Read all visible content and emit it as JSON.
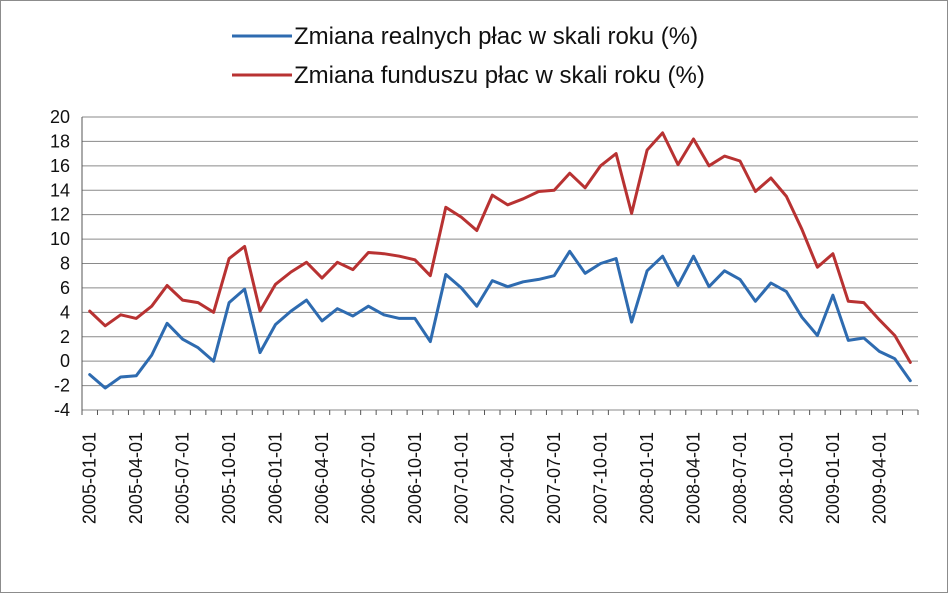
{
  "chart_data": {
    "type": "line",
    "title": "",
    "xlabel": "",
    "ylabel": "",
    "ylim": [
      -4,
      20
    ],
    "yticks": [
      20,
      18,
      16,
      14,
      12,
      10,
      8,
      6,
      4,
      2,
      0,
      -2,
      -4
    ],
    "grid": true,
    "legend_position": "top",
    "x": [
      "2005-01-01",
      "2005-02-01",
      "2005-03-01",
      "2005-04-01",
      "2005-05-01",
      "2005-06-01",
      "2005-07-01",
      "2005-08-01",
      "2005-09-01",
      "2005-10-01",
      "2005-11-01",
      "2005-12-01",
      "2006-01-01",
      "2006-02-01",
      "2006-03-01",
      "2006-04-01",
      "2006-05-01",
      "2006-06-01",
      "2006-07-01",
      "2006-08-01",
      "2006-09-01",
      "2006-10-01",
      "2006-11-01",
      "2006-12-01",
      "2007-01-01",
      "2007-02-01",
      "2007-03-01",
      "2007-04-01",
      "2007-05-01",
      "2007-06-01",
      "2007-07-01",
      "2007-08-01",
      "2007-09-01",
      "2007-10-01",
      "2007-11-01",
      "2007-12-01",
      "2008-01-01",
      "2008-02-01",
      "2008-03-01",
      "2008-04-01",
      "2008-05-01",
      "2008-06-01",
      "2008-07-01",
      "2008-08-01",
      "2008-09-01",
      "2008-10-01",
      "2008-11-01",
      "2008-12-01",
      "2009-01-01",
      "2009-02-01",
      "2009-03-01",
      "2009-04-01",
      "2009-05-01",
      "2009-06-01"
    ],
    "xtick_labels": [
      "2005-01-01",
      "2005-04-01",
      "2005-07-01",
      "2005-10-01",
      "2006-01-01",
      "2006-04-01",
      "2006-07-01",
      "2006-10-01",
      "2007-01-01",
      "2007-04-01",
      "2007-07-01",
      "2007-10-01",
      "2008-01-01",
      "2008-04-01",
      "2008-07-01",
      "2008-10-01",
      "2009-01-01",
      "2009-04-01"
    ],
    "series": [
      {
        "name": "Zmiana realnych płac w skali roku (%)",
        "color": "#2e6bb0",
        "values": [
          -1.1,
          -2.2,
          -1.3,
          -1.2,
          0.5,
          3.1,
          1.8,
          1.1,
          0.0,
          4.8,
          5.9,
          0.7,
          3.0,
          4.1,
          5.0,
          3.3,
          4.3,
          3.7,
          4.5,
          3.8,
          3.5,
          3.5,
          1.6,
          7.1,
          6.0,
          4.5,
          6.6,
          6.1,
          6.5,
          6.7,
          7.0,
          9.0,
          7.2,
          8.0,
          8.4,
          3.2,
          7.4,
          8.6,
          6.2,
          8.6,
          6.1,
          7.4,
          6.7,
          4.9,
          6.4,
          5.7,
          3.6,
          2.1,
          5.4,
          1.7,
          1.9,
          0.8,
          0.2,
          -1.6
        ]
      },
      {
        "name": "Zmiana funduszu płac w skali roku (%)",
        "color": "#b83232",
        "values": [
          4.1,
          2.9,
          3.8,
          3.5,
          4.5,
          6.2,
          5.0,
          4.8,
          4.0,
          8.4,
          9.4,
          4.1,
          6.3,
          7.3,
          8.1,
          6.8,
          8.1,
          7.5,
          8.9,
          8.8,
          8.6,
          8.3,
          7.0,
          12.6,
          11.8,
          10.7,
          13.6,
          12.8,
          13.3,
          13.9,
          14.0,
          15.4,
          14.2,
          16.0,
          17.0,
          12.1,
          17.3,
          18.7,
          16.1,
          18.2,
          16.0,
          16.8,
          16.4,
          13.9,
          15.0,
          13.5,
          10.8,
          7.7,
          8.8,
          4.9,
          4.8,
          3.4,
          2.1,
          -0.1
        ]
      }
    ]
  }
}
